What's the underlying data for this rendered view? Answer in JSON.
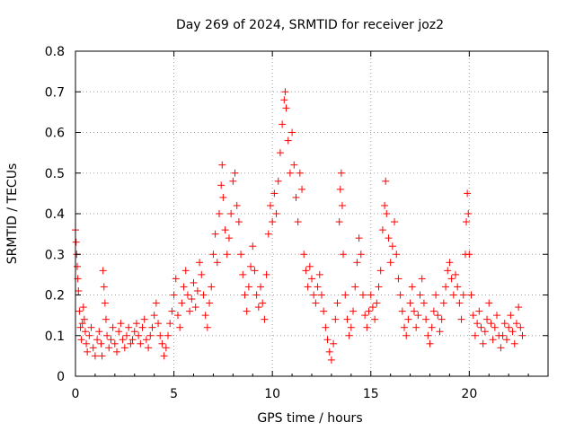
{
  "chart_data": {
    "type": "scatter",
    "title": "Day 269 of 2024, SRMTID for receiver joz2",
    "xlabel": "GPS time / hours",
    "ylabel": "SRMTID / TECUs",
    "xlim": [
      0,
      24
    ],
    "ylim": [
      0,
      0.8
    ],
    "xticks": [
      0,
      5,
      10,
      15,
      20
    ],
    "xtick_labels": [
      "0",
      "5",
      "10",
      "15",
      "20"
    ],
    "yticks": [
      0,
      0.1,
      0.2,
      0.3,
      0.4,
      0.5,
      0.6,
      0.7,
      0.8
    ],
    "ytick_labels": [
      "0",
      "0.1",
      "0.2",
      "0.3",
      "0.4",
      "0.5",
      "0.6",
      "0.7",
      "0.8"
    ],
    "grid": true,
    "marker": "+",
    "color": "#ff0000",
    "series": [
      {
        "name": "SRMTID",
        "points": [
          [
            0.0,
            0.36
          ],
          [
            0.03,
            0.33
          ],
          [
            0.06,
            0.3
          ],
          [
            0.09,
            0.27
          ],
          [
            0.12,
            0.24
          ],
          [
            0.15,
            0.21
          ],
          [
            0.2,
            0.16
          ],
          [
            0.25,
            0.12
          ],
          [
            0.3,
            0.09
          ],
          [
            0.35,
            0.13
          ],
          [
            0.4,
            0.17
          ],
          [
            0.45,
            0.14
          ],
          [
            0.5,
            0.11
          ],
          [
            0.55,
            0.08
          ],
          [
            0.6,
            0.06
          ],
          [
            0.7,
            0.1
          ],
          [
            0.8,
            0.12
          ],
          [
            0.9,
            0.07
          ],
          [
            1.0,
            0.05
          ],
          [
            1.1,
            0.09
          ],
          [
            1.2,
            0.11
          ],
          [
            1.3,
            0.08
          ],
          [
            1.35,
            0.05
          ],
          [
            1.4,
            0.26
          ],
          [
            1.45,
            0.22
          ],
          [
            1.5,
            0.18
          ],
          [
            1.55,
            0.14
          ],
          [
            1.6,
            0.1
          ],
          [
            1.7,
            0.07
          ],
          [
            1.8,
            0.09
          ],
          [
            1.9,
            0.12
          ],
          [
            2.0,
            0.08
          ],
          [
            2.1,
            0.06
          ],
          [
            2.2,
            0.11
          ],
          [
            2.3,
            0.13
          ],
          [
            2.4,
            0.09
          ],
          [
            2.5,
            0.07
          ],
          [
            2.6,
            0.1
          ],
          [
            2.7,
            0.12
          ],
          [
            2.8,
            0.08
          ],
          [
            2.9,
            0.09
          ],
          [
            3.0,
            0.11
          ],
          [
            3.1,
            0.13
          ],
          [
            3.2,
            0.1
          ],
          [
            3.3,
            0.08
          ],
          [
            3.4,
            0.12
          ],
          [
            3.5,
            0.14
          ],
          [
            3.6,
            0.09
          ],
          [
            3.7,
            0.07
          ],
          [
            3.8,
            0.1
          ],
          [
            3.9,
            0.12
          ],
          [
            4.0,
            0.15
          ],
          [
            4.1,
            0.18
          ],
          [
            4.2,
            0.13
          ],
          [
            4.3,
            0.1
          ],
          [
            4.4,
            0.08
          ],
          [
            4.5,
            0.05
          ],
          [
            4.6,
            0.07
          ],
          [
            4.7,
            0.1
          ],
          [
            4.8,
            0.13
          ],
          [
            4.9,
            0.16
          ],
          [
            5.0,
            0.2
          ],
          [
            5.1,
            0.24
          ],
          [
            5.2,
            0.15
          ],
          [
            5.3,
            0.12
          ],
          [
            5.4,
            0.18
          ],
          [
            5.5,
            0.22
          ],
          [
            5.6,
            0.26
          ],
          [
            5.7,
            0.2
          ],
          [
            5.8,
            0.16
          ],
          [
            5.9,
            0.19
          ],
          [
            6.0,
            0.23
          ],
          [
            6.1,
            0.17
          ],
          [
            6.2,
            0.21
          ],
          [
            6.3,
            0.28
          ],
          [
            6.4,
            0.25
          ],
          [
            6.5,
            0.2
          ],
          [
            6.6,
            0.15
          ],
          [
            6.7,
            0.12
          ],
          [
            6.8,
            0.18
          ],
          [
            6.9,
            0.22
          ],
          [
            7.0,
            0.3
          ],
          [
            7.1,
            0.35
          ],
          [
            7.2,
            0.28
          ],
          [
            7.3,
            0.4
          ],
          [
            7.4,
            0.47
          ],
          [
            7.45,
            0.52
          ],
          [
            7.5,
            0.44
          ],
          [
            7.6,
            0.36
          ],
          [
            7.7,
            0.3
          ],
          [
            7.8,
            0.34
          ],
          [
            7.9,
            0.4
          ],
          [
            8.0,
            0.48
          ],
          [
            8.1,
            0.5
          ],
          [
            8.2,
            0.42
          ],
          [
            8.3,
            0.38
          ],
          [
            8.4,
            0.3
          ],
          [
            8.5,
            0.25
          ],
          [
            8.6,
            0.2
          ],
          [
            8.7,
            0.16
          ],
          [
            8.8,
            0.22
          ],
          [
            8.9,
            0.27
          ],
          [
            9.0,
            0.32
          ],
          [
            9.1,
            0.26
          ],
          [
            9.2,
            0.2
          ],
          [
            9.3,
            0.17
          ],
          [
            9.4,
            0.22
          ],
          [
            9.5,
            0.18
          ],
          [
            9.6,
            0.14
          ],
          [
            9.7,
            0.25
          ],
          [
            9.8,
            0.35
          ],
          [
            9.9,
            0.42
          ],
          [
            10.0,
            0.38
          ],
          [
            10.1,
            0.45
          ],
          [
            10.2,
            0.4
          ],
          [
            10.3,
            0.48
          ],
          [
            10.4,
            0.55
          ],
          [
            10.5,
            0.62
          ],
          [
            10.6,
            0.68
          ],
          [
            10.65,
            0.7
          ],
          [
            10.7,
            0.66
          ],
          [
            10.8,
            0.58
          ],
          [
            10.9,
            0.5
          ],
          [
            11.0,
            0.6
          ],
          [
            11.1,
            0.52
          ],
          [
            11.2,
            0.44
          ],
          [
            11.3,
            0.38
          ],
          [
            11.4,
            0.5
          ],
          [
            11.5,
            0.46
          ],
          [
            11.6,
            0.3
          ],
          [
            11.7,
            0.26
          ],
          [
            11.8,
            0.22
          ],
          [
            11.9,
            0.27
          ],
          [
            12.0,
            0.24
          ],
          [
            12.1,
            0.2
          ],
          [
            12.2,
            0.18
          ],
          [
            12.3,
            0.22
          ],
          [
            12.4,
            0.25
          ],
          [
            12.5,
            0.2
          ],
          [
            12.6,
            0.16
          ],
          [
            12.7,
            0.12
          ],
          [
            12.8,
            0.09
          ],
          [
            12.9,
            0.06
          ],
          [
            13.0,
            0.04
          ],
          [
            13.1,
            0.08
          ],
          [
            13.2,
            0.14
          ],
          [
            13.3,
            0.18
          ],
          [
            13.4,
            0.38
          ],
          [
            13.45,
            0.46
          ],
          [
            13.5,
            0.5
          ],
          [
            13.55,
            0.42
          ],
          [
            13.6,
            0.3
          ],
          [
            13.7,
            0.2
          ],
          [
            13.8,
            0.14
          ],
          [
            13.9,
            0.1
          ],
          [
            14.0,
            0.12
          ],
          [
            14.1,
            0.16
          ],
          [
            14.2,
            0.22
          ],
          [
            14.3,
            0.28
          ],
          [
            14.4,
            0.34
          ],
          [
            14.5,
            0.3
          ],
          [
            14.6,
            0.2
          ],
          [
            14.7,
            0.15
          ],
          [
            14.8,
            0.12
          ],
          [
            14.9,
            0.16
          ],
          [
            15.0,
            0.2
          ],
          [
            15.1,
            0.17
          ],
          [
            15.2,
            0.14
          ],
          [
            15.3,
            0.18
          ],
          [
            15.4,
            0.22
          ],
          [
            15.5,
            0.26
          ],
          [
            15.6,
            0.36
          ],
          [
            15.7,
            0.42
          ],
          [
            15.75,
            0.48
          ],
          [
            15.8,
            0.4
          ],
          [
            15.9,
            0.34
          ],
          [
            16.0,
            0.28
          ],
          [
            16.1,
            0.32
          ],
          [
            16.2,
            0.38
          ],
          [
            16.3,
            0.3
          ],
          [
            16.4,
            0.24
          ],
          [
            16.5,
            0.2
          ],
          [
            16.6,
            0.16
          ],
          [
            16.7,
            0.12
          ],
          [
            16.8,
            0.1
          ],
          [
            16.9,
            0.14
          ],
          [
            17.0,
            0.18
          ],
          [
            17.1,
            0.22
          ],
          [
            17.2,
            0.16
          ],
          [
            17.3,
            0.12
          ],
          [
            17.4,
            0.15
          ],
          [
            17.5,
            0.2
          ],
          [
            17.6,
            0.24
          ],
          [
            17.7,
            0.18
          ],
          [
            17.8,
            0.14
          ],
          [
            17.9,
            0.1
          ],
          [
            18.0,
            0.08
          ],
          [
            18.1,
            0.12
          ],
          [
            18.2,
            0.16
          ],
          [
            18.3,
            0.2
          ],
          [
            18.4,
            0.15
          ],
          [
            18.5,
            0.11
          ],
          [
            18.6,
            0.14
          ],
          [
            18.7,
            0.18
          ],
          [
            18.8,
            0.22
          ],
          [
            18.9,
            0.26
          ],
          [
            19.0,
            0.28
          ],
          [
            19.1,
            0.24
          ],
          [
            19.2,
            0.2
          ],
          [
            19.3,
            0.25
          ],
          [
            19.4,
            0.22
          ],
          [
            19.5,
            0.18
          ],
          [
            19.6,
            0.14
          ],
          [
            19.7,
            0.2
          ],
          [
            19.8,
            0.3
          ],
          [
            19.85,
            0.38
          ],
          [
            19.9,
            0.45
          ],
          [
            19.95,
            0.4
          ],
          [
            20.0,
            0.3
          ],
          [
            20.1,
            0.2
          ],
          [
            20.2,
            0.15
          ],
          [
            20.3,
            0.1
          ],
          [
            20.4,
            0.13
          ],
          [
            20.5,
            0.16
          ],
          [
            20.6,
            0.12
          ],
          [
            20.7,
            0.08
          ],
          [
            20.8,
            0.11
          ],
          [
            20.9,
            0.14
          ],
          [
            21.0,
            0.18
          ],
          [
            21.1,
            0.13
          ],
          [
            21.2,
            0.09
          ],
          [
            21.3,
            0.12
          ],
          [
            21.4,
            0.15
          ],
          [
            21.5,
            0.1
          ],
          [
            21.6,
            0.07
          ],
          [
            21.7,
            0.1
          ],
          [
            21.8,
            0.13
          ],
          [
            21.9,
            0.09
          ],
          [
            22.0,
            0.12
          ],
          [
            22.1,
            0.15
          ],
          [
            22.2,
            0.11
          ],
          [
            22.3,
            0.08
          ],
          [
            22.4,
            0.13
          ],
          [
            22.5,
            0.17
          ],
          [
            22.6,
            0.12
          ],
          [
            22.7,
            0.1
          ]
        ]
      }
    ]
  }
}
